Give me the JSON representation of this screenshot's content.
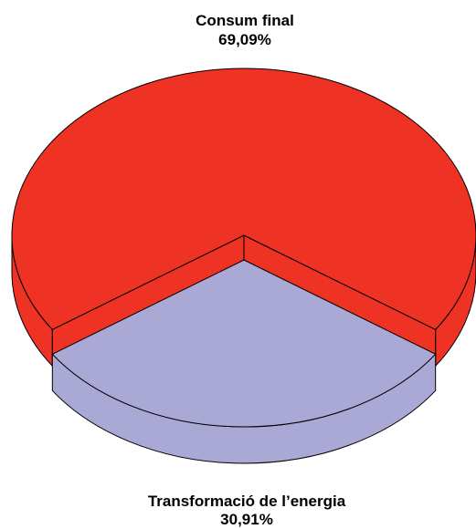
{
  "chart_data": {
    "type": "pie3d",
    "categories": [
      "Consum final",
      "Transformació de l’energia"
    ],
    "values": [
      69.09,
      30.91
    ],
    "value_labels": [
      "69,09%",
      "30,91%"
    ],
    "colors": [
      "#ee3224",
      "#aaa8d4"
    ]
  }
}
